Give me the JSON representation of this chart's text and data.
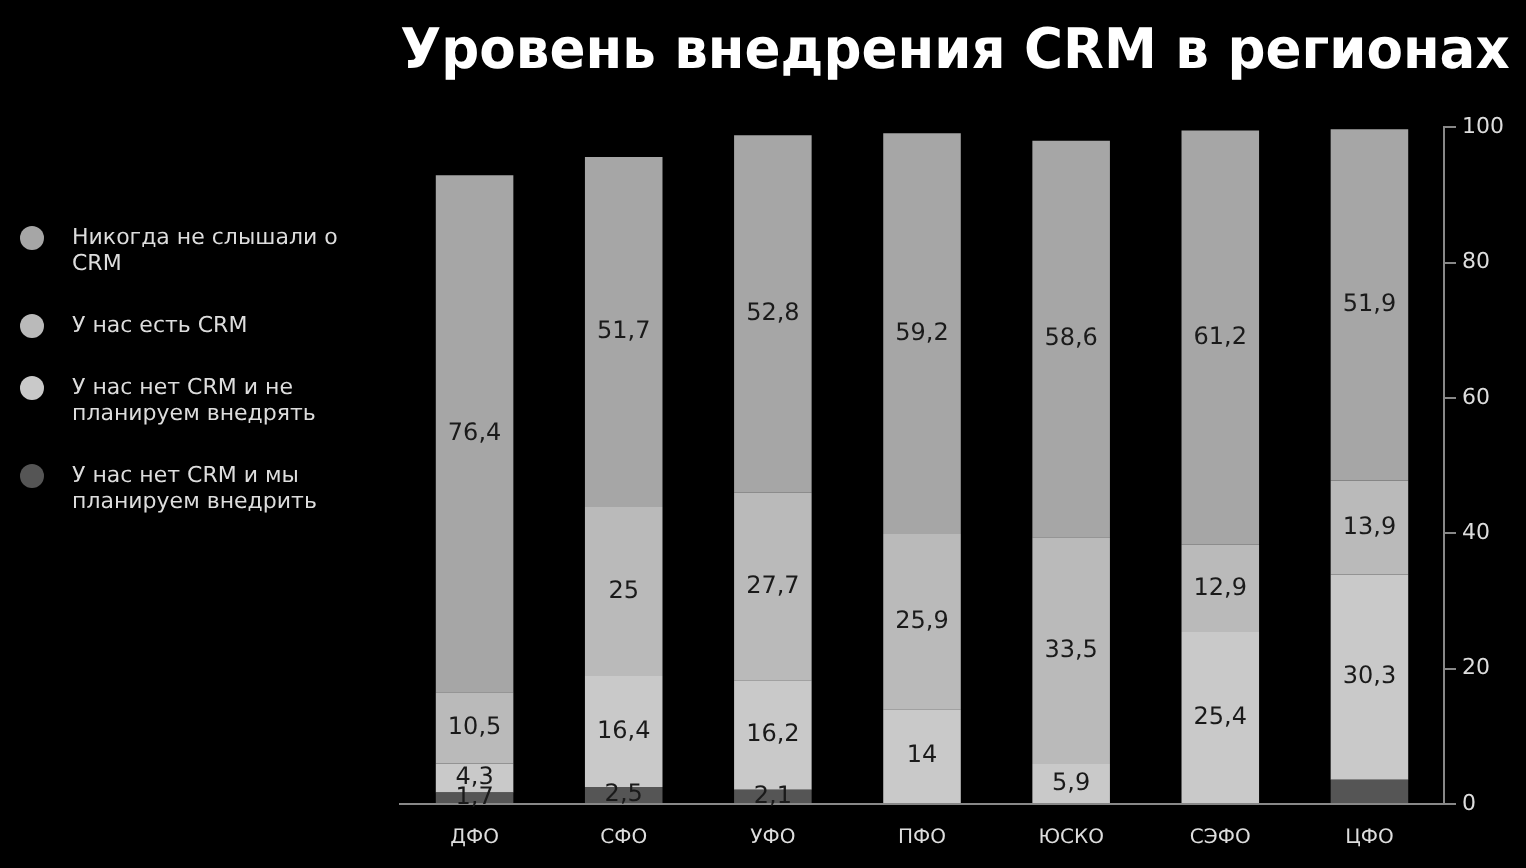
{
  "chart_data": {
    "type": "bar",
    "title": "Уровень внедрения CRM в регионах",
    "categories": [
      "ДФО",
      "СФО",
      "УФО",
      "ПФО",
      "ЮСКО",
      "СЭФО",
      "ЦФО"
    ],
    "stacked": true,
    "ylim": [
      0,
      100
    ],
    "yticks": [
      0,
      20,
      40,
      60,
      80,
      100
    ],
    "grid": false,
    "legend": "left",
    "series": [
      {
        "name": "У нас нет CRM и мы планируем внедрить",
        "color": "#555555",
        "values": [
          1.7,
          2.5,
          2.1,
          null,
          null,
          null,
          3.6
        ],
        "value_labels": [
          "1,7",
          "2,5",
          "2,1",
          null,
          null,
          null,
          null
        ]
      },
      {
        "name": "У нас нет CRM и не планируем внедрять",
        "color": "#c9c9c9",
        "values": [
          4.3,
          16.4,
          16.2,
          14,
          5.9,
          25.4,
          30.3
        ],
        "value_labels": [
          "4,3",
          "16,4",
          "16,2",
          "14",
          "5,9",
          "25,4",
          "30,3"
        ]
      },
      {
        "name": "У нас есть CRM",
        "color": "#bababa",
        "values": [
          10.5,
          25,
          27.7,
          25.9,
          33.5,
          12.9,
          13.9
        ],
        "value_labels": [
          "10,5",
          "25",
          "27,7",
          "25,9",
          "33,5",
          "12,9",
          "13,9"
        ]
      },
      {
        "name": "Никогда не слышали о CRM",
        "color": "#a6a6a6",
        "values": [
          76.4,
          51.7,
          52.8,
          59.2,
          58.6,
          61.2,
          51.9
        ],
        "value_labels": [
          "76,4",
          "51,7",
          "52,8",
          "59,2",
          "58,6",
          "61,2",
          "51,9"
        ]
      }
    ]
  }
}
